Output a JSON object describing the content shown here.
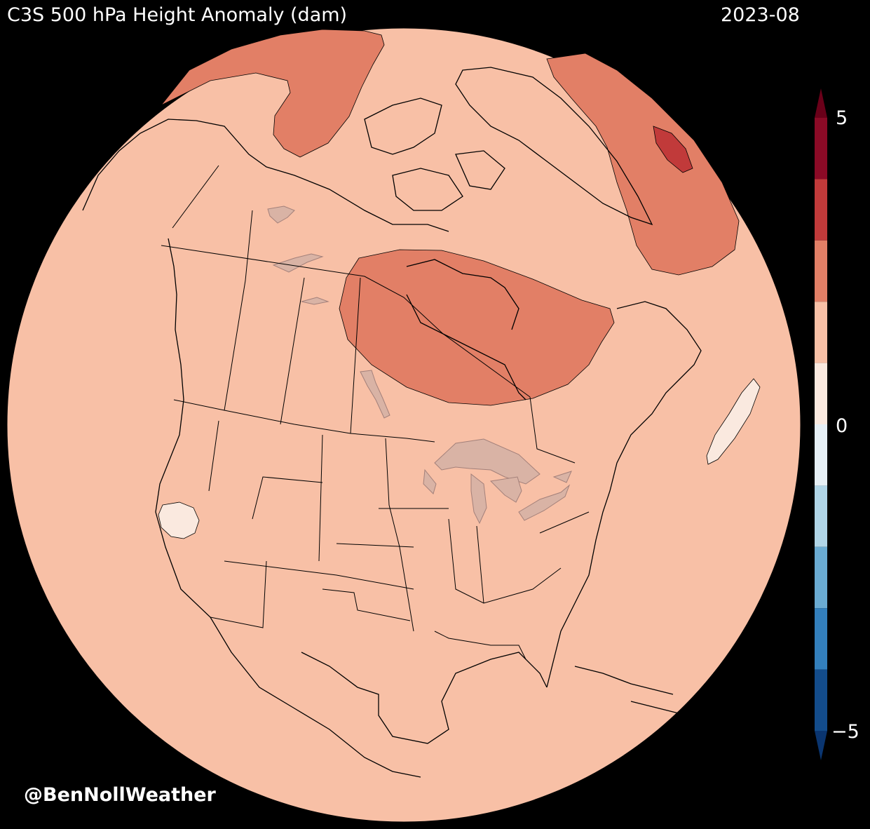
{
  "header": {
    "title": "C3S 500 hPa Height Anomaly (dam)",
    "date": "2023-08"
  },
  "credit": "@BenNollWeather",
  "colorbar": {
    "ticks": {
      "top": "5",
      "middle": "0",
      "bottom": "−5"
    },
    "levels": [
      {
        "lower": 4,
        "upper": 5,
        "color": "#8b0a26"
      },
      {
        "lower": 3,
        "upper": 4,
        "color": "#c13a3a"
      },
      {
        "lower": 2,
        "upper": 3,
        "color": "#e27f66"
      },
      {
        "lower": 1,
        "upper": 2,
        "color": "#f8c0a6"
      },
      {
        "lower": 0,
        "upper": 1,
        "color": "#fae9df"
      },
      {
        "lower": -1,
        "upper": 0,
        "color": "#e6eff5"
      },
      {
        "lower": -2,
        "upper": -1,
        "color": "#b0d5e7"
      },
      {
        "lower": -3,
        "upper": -2,
        "color": "#6aabd2"
      },
      {
        "lower": -4,
        "upper": -3,
        "color": "#337fbc"
      },
      {
        "lower": -5,
        "upper": -4,
        "color": "#134c8b"
      }
    ],
    "extend_max_color": "#6a0019",
    "extend_min_color": "#0a3570"
  },
  "map": {
    "projection": "orthographic",
    "region": "North America",
    "background_anomaly_level": "1 to 2",
    "anomaly_regions": [
      {
        "name": "hudson-bay-anomaly",
        "level": "2 to 3"
      },
      {
        "name": "beaufort-sea-anomaly",
        "level": "2 to 3"
      },
      {
        "name": "east-greenland-anomaly",
        "level": "2 to 3"
      },
      {
        "name": "east-greenland-core",
        "level": "3 to 4"
      },
      {
        "name": "north-atlantic-anomaly",
        "level": "0 to 1"
      },
      {
        "name": "nevada-anomaly",
        "level": "0 to 1"
      }
    ]
  }
}
